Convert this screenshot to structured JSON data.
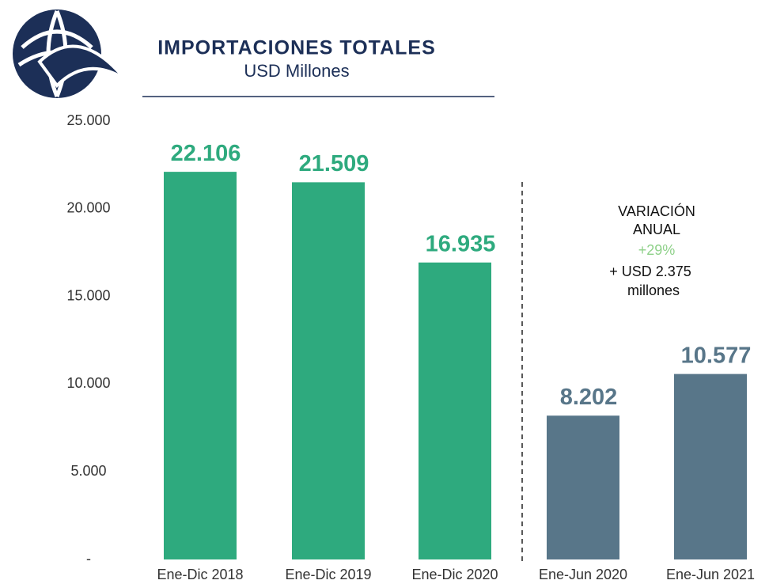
{
  "chart_data": {
    "type": "bar",
    "title": "IMPORTACIONES TOTALES",
    "subtitle": "USD Millones",
    "categories": [
      "Ene-Dic 2018",
      "Ene-Dic 2019",
      "Ene-Dic 2020",
      "Ene-Jun 2020",
      "Ene-Jun 2021"
    ],
    "values": [
      22106,
      21509,
      16935,
      8202,
      10577
    ],
    "value_labels": [
      "22.106",
      "21.509",
      "16.935",
      "8.202",
      "10.577"
    ],
    "colors": [
      "#2eaa7e",
      "#2eaa7e",
      "#2eaa7e",
      "#587689",
      "#587689"
    ],
    "ylim": [
      0,
      25000
    ],
    "yticks": [
      {
        "value": 0,
        "label": "-"
      },
      {
        "value": 5000,
        "label": "5.000"
      },
      {
        "value": 10000,
        "label": "10.000"
      },
      {
        "value": 15000,
        "label": "15.000"
      },
      {
        "value": 20000,
        "label": "20.000"
      },
      {
        "value": 25000,
        "label": "25.000"
      }
    ],
    "annotations": [
      "VARIACIÓN",
      "ANUAL",
      "+29%",
      "+ USD 2.375",
      "millones"
    ]
  }
}
